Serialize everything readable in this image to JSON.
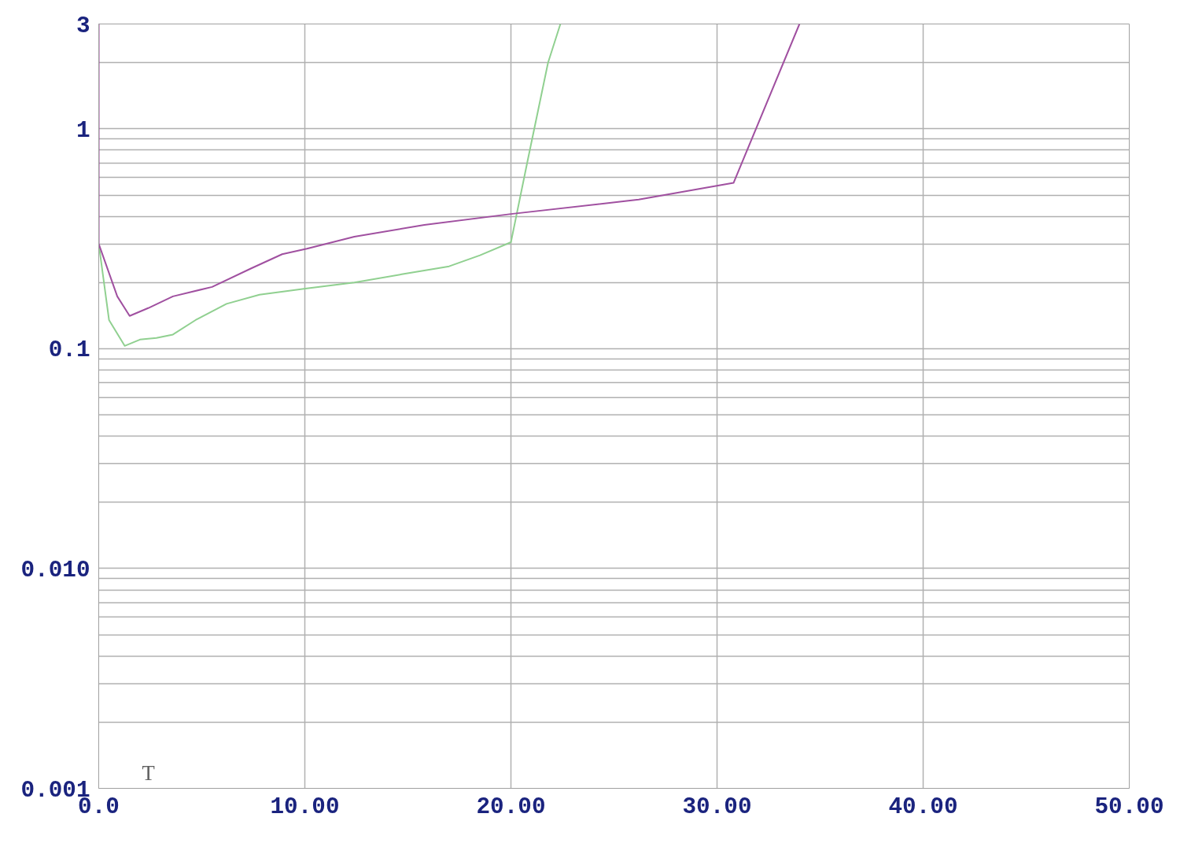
{
  "chart_data": {
    "type": "line",
    "log": "y",
    "grid": true,
    "marker": "none",
    "line_style": "solid",
    "xlim": [
      0,
      50
    ],
    "ylim": [
      0.001,
      3
    ],
    "xticks": [
      {
        "value": 0,
        "label": "0.0"
      },
      {
        "value": 10,
        "label": "10.00"
      },
      {
        "value": 20,
        "label": "20.00"
      },
      {
        "value": 30,
        "label": "30.00"
      },
      {
        "value": 40,
        "label": "40.00"
      },
      {
        "value": 50,
        "label": "50.00"
      }
    ],
    "yticks": [
      0.001,
      {
        "value": 0.002,
        "label": null
      },
      {
        "value": 0.003,
        "label": null
      },
      {
        "value": 0.004,
        "label": null
      },
      {
        "value": 0.005,
        "label": null
      },
      {
        "value": 0.006,
        "label": null
      },
      {
        "value": 0.007,
        "label": null
      },
      {
        "value": 0.008,
        "label": null
      },
      {
        "value": 0.009,
        "label": null
      },
      {
        "value": 0.01,
        "label": "0.010"
      },
      {
        "value": 0.02,
        "label": null
      },
      {
        "value": 0.03,
        "label": null
      },
      {
        "value": 0.04,
        "label": null
      },
      {
        "value": 0.05,
        "label": null
      },
      {
        "value": 0.06,
        "label": null
      },
      {
        "value": 0.07,
        "label": null
      },
      {
        "value": 0.08,
        "label": null
      },
      {
        "value": 0.09,
        "label": null
      },
      0.1,
      {
        "value": 0.2,
        "label": null
      },
      {
        "value": 0.3,
        "label": null
      },
      {
        "value": 0.4,
        "label": null
      },
      {
        "value": 0.5,
        "label": null
      },
      {
        "value": 0.6,
        "label": null
      },
      {
        "value": 0.7,
        "label": null
      },
      {
        "value": 0.8,
        "label": null
      },
      {
        "value": 0.9,
        "label": null
      },
      1,
      {
        "value": 2,
        "label": null
      },
      3
    ],
    "annotations": [
      "T"
    ],
    "series": [
      {
        "color": "#90d090",
        "x": [
          0,
          0.5,
          1.26,
          2.0,
          2.8,
          3.6,
          4.7,
          6.2,
          7.8,
          10.1,
          12.4,
          14.7,
          17,
          18.5,
          20,
          20.8,
          21.8,
          22.4
        ],
        "values": [
          0.3,
          0.135,
          0.103,
          0.11,
          0.112,
          0.116,
          0.135,
          0.16,
          0.176,
          0.188,
          0.2,
          0.218,
          0.237,
          0.266,
          0.305,
          0.71,
          2.0,
          3.0
        ]
      },
      {
        "color": "#a050a0",
        "x": [
          0,
          0,
          0.9,
          1.5,
          2.4,
          3.6,
          5.5,
          7.4,
          8.9,
          10.1,
          12.4,
          15.8,
          20,
          26.2,
          30.8,
          34
        ],
        "values": [
          3.0,
          0.3,
          0.173,
          0.141,
          0.153,
          0.173,
          0.191,
          0.232,
          0.269,
          0.285,
          0.323,
          0.366,
          0.41,
          0.477,
          0.568,
          3.0
        ]
      }
    ]
  }
}
